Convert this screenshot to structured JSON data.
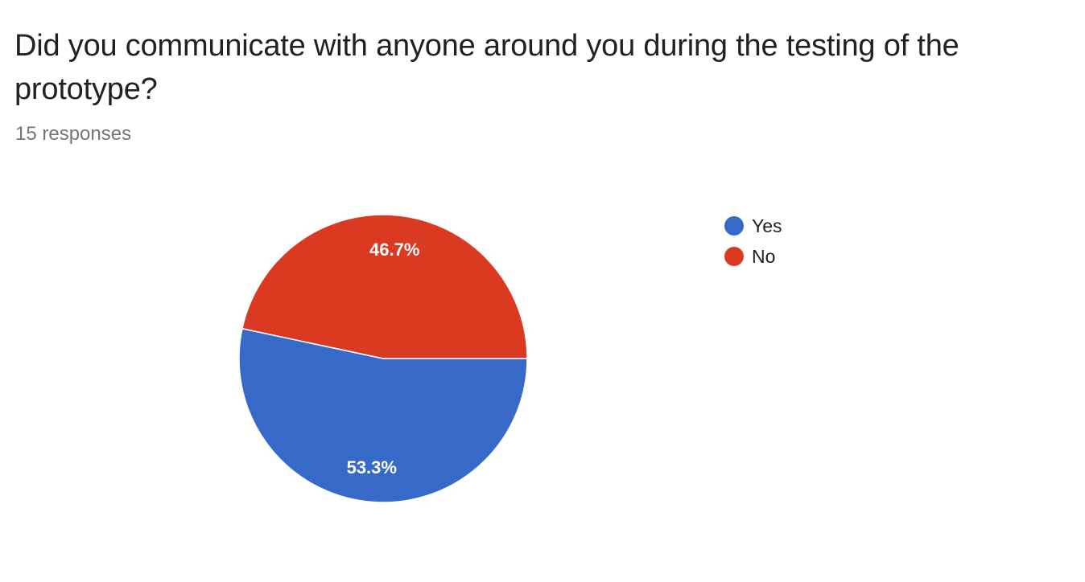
{
  "question": {
    "title": "Did you communicate with anyone around you during the testing of the prototype?",
    "responses": "15 responses"
  },
  "chart_data": {
    "type": "pie",
    "title": "Did you communicate with anyone around you during the testing of the prototype?",
    "total_responses": 15,
    "start_angle_deg": 0,
    "direction": "clockwise",
    "slices": [
      {
        "label": "Yes",
        "value": 8,
        "percent": 53.3,
        "percent_label": "53.3%",
        "color": "#3769C9"
      },
      {
        "label": "No",
        "value": 7,
        "percent": 46.7,
        "percent_label": "46.7%",
        "color": "#DA3A21"
      }
    ],
    "legend_position": "right",
    "legend": [
      {
        "label": "Yes",
        "color": "#3769C9"
      },
      {
        "label": "No",
        "color": "#DA3A21"
      }
    ]
  }
}
